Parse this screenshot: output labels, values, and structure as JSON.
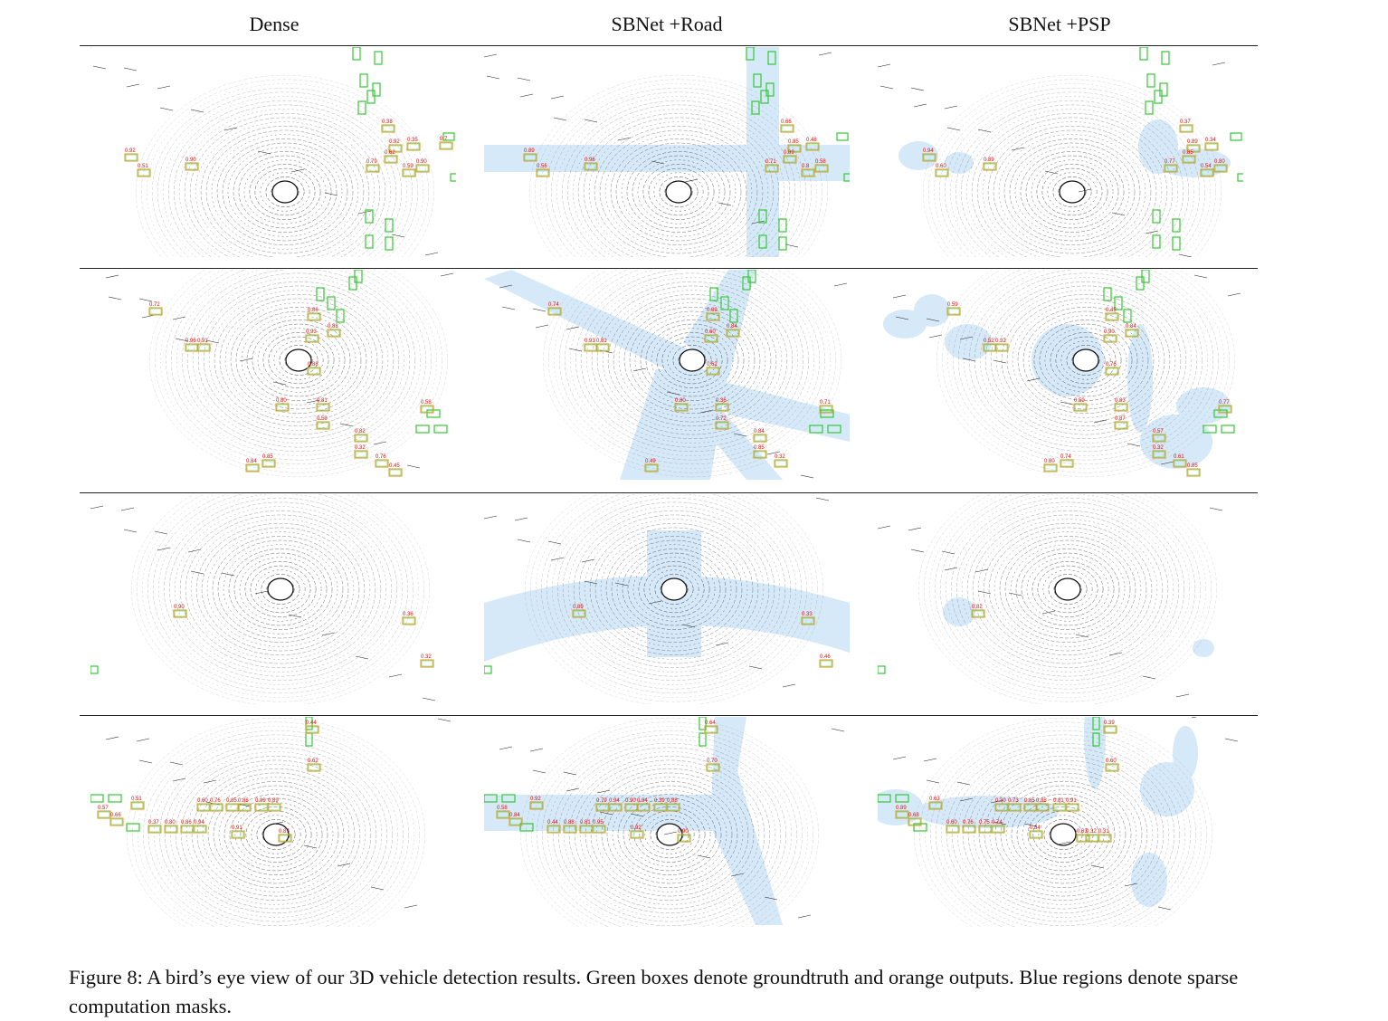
{
  "figure": {
    "columns": [
      "Dense",
      "SBNet +Road",
      "SBNet +PSP"
    ],
    "caption": "Figure 8: A bird’s eye view of our 3D vehicle detection results. Green boxes denote groundtruth and orange outputs. Blue regions denote sparse computation masks.",
    "colors": {
      "groundtruth": "#35c935",
      "output": "#e0a030",
      "mask": "#d6e9f8",
      "score_text": "#dd1111",
      "lidar": "#1a1a1a"
    },
    "rows": [
      {
        "label": "row-1",
        "panels": [
          {
            "mask": "none",
            "scores": [
              "0.92",
              "0.51",
              "0.90",
              "0.38",
              "0.92",
              "0.35",
              "0.79",
              "0.62",
              "0.90",
              "0.59",
              "0.7"
            ]
          },
          {
            "mask": "road",
            "scores": [
              "0.89",
              "0.56",
              "0.96",
              "0.66",
              "0.85",
              "0.48",
              "0.71",
              "0.89",
              "0.58",
              "0.8"
            ]
          },
          {
            "mask": "psp",
            "scores": [
              "0.94",
              "0.60",
              "0.89",
              "0.37",
              "0.89",
              "0.34",
              "0.77",
              "0.85",
              "0.80",
              "0.54"
            ]
          }
        ]
      },
      {
        "label": "row-2",
        "panels": [
          {
            "mask": "none",
            "scores": [
              "0.72",
              "0.96",
              "0.91",
              "0.86",
              "0.88",
              "0.93",
              "0.88",
              "0.58",
              "0.81",
              "0.80",
              "0.59",
              "0.82",
              "0.32",
              "0.76",
              "0.84",
              "0.85",
              "0.45"
            ]
          },
          {
            "mask": "road",
            "scores": [
              "0.74",
              "0.93",
              "0.81",
              "0.89",
              "0.84",
              "0.60",
              "0.62",
              "0.71",
              "0.36",
              "0.80",
              "0.72",
              "0.84",
              "0.85",
              "0.32",
              "0.49"
            ]
          },
          {
            "mask": "psp",
            "scores": [
              "0.59",
              "0.52",
              "0.32",
              "0.45",
              "0.84",
              "0.90",
              "0.76",
              "0.77",
              "0.83",
              "0.59",
              "0.87",
              "0.57",
              "0.32",
              "0.61",
              "0.80",
              "0.74",
              "0.85"
            ]
          }
        ]
      },
      {
        "label": "row-3",
        "panels": [
          {
            "mask": "none",
            "scores": [
              "0.90",
              "0.36",
              "0.32"
            ]
          },
          {
            "mask": "road",
            "scores": [
              "0.89",
              "0.33",
              "0.46"
            ]
          },
          {
            "mask": "psp",
            "scores": [
              "0.82"
            ]
          }
        ]
      },
      {
        "label": "row-4",
        "panels": [
          {
            "mask": "none",
            "scores": [
              "0.44",
              "0.62",
              "0.51",
              "0.60",
              "0.76",
              "0.85",
              "0.86",
              "0.89",
              "0.89",
              "0.57",
              "0.66",
              "0.37",
              "0.80",
              "0.86",
              "0.94",
              "0.91",
              "0.87"
            ]
          },
          {
            "mask": "road",
            "scores": [
              "0.64",
              "0.70",
              "0.92",
              "0.79",
              "0.94",
              "0.90",
              "0.94",
              "0.39",
              "0.88",
              "0.58",
              "0.84",
              "0.44",
              "0.88",
              "0.81",
              "0.95",
              "0.92",
              "0.90"
            ]
          },
          {
            "mask": "psp",
            "scores": [
              "0.39",
              "0.60",
              "0.63",
              "0.30",
              "0.73",
              "0.85",
              "0.88",
              "0.81",
              "0.91",
              "0.89",
              "0.68",
              "0.60",
              "0.76",
              "0.75",
              "0.74",
              "0.84",
              "0.83",
              "0.32",
              "0.31"
            ]
          }
        ]
      }
    ]
  }
}
